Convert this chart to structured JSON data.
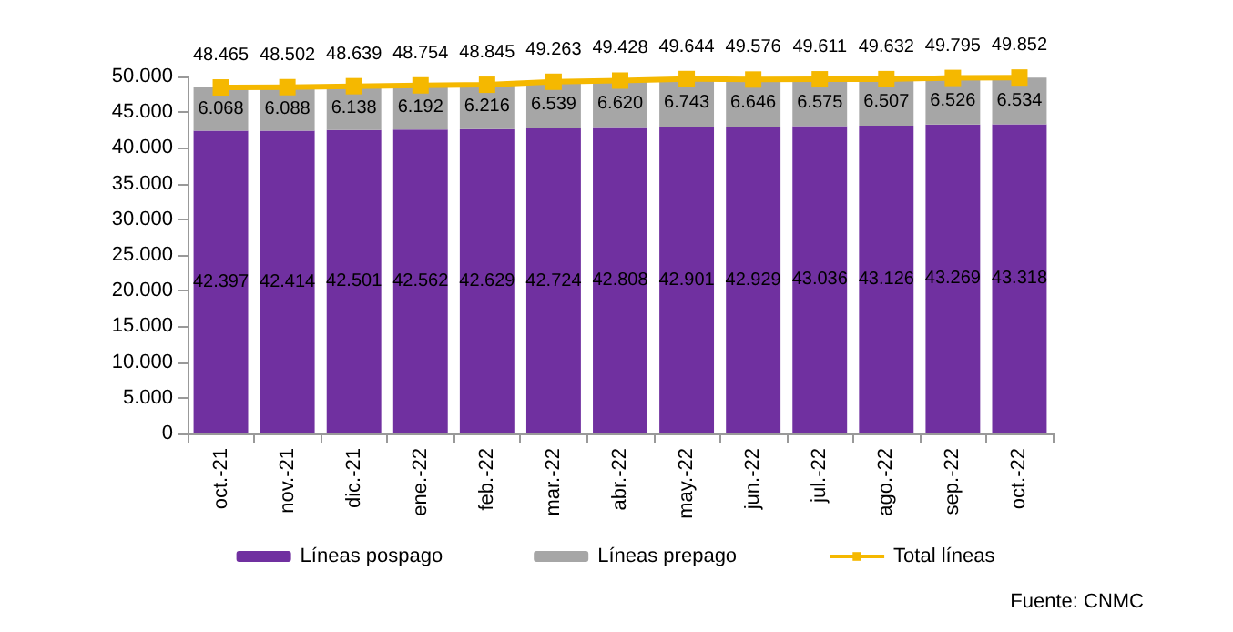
{
  "chart_data": {
    "type": "bar",
    "stacked": true,
    "categories": [
      "oct.-21",
      "nov.-21",
      "dic.-21",
      "ene.-22",
      "feb.-22",
      "mar.-22",
      "abr.-22",
      "may.-22",
      "jun.-22",
      "jul.-22",
      "ago.-22",
      "sep.-22",
      "oct.-22"
    ],
    "series": [
      {
        "name": "Líneas pospago",
        "color": "#7030a0",
        "values": [
          42397,
          42414,
          42501,
          42562,
          42629,
          42724,
          42808,
          42901,
          42929,
          43036,
          43126,
          43269,
          43318
        ],
        "value_labels": [
          "42.397",
          "42.414",
          "42.501",
          "42.562",
          "42.629",
          "42.724",
          "42.808",
          "42.901",
          "42.929",
          "43.036",
          "43.126",
          "43.269",
          "43.318"
        ]
      },
      {
        "name": "Líneas prepago",
        "color": "#a6a6a6",
        "values": [
          6068,
          6088,
          6138,
          6192,
          6216,
          6539,
          6620,
          6743,
          6646,
          6575,
          6507,
          6526,
          6534
        ],
        "value_labels": [
          "6.068",
          "6.088",
          "6.138",
          "6.192",
          "6.216",
          "6.539",
          "6.620",
          "6.743",
          "6.646",
          "6.575",
          "6.507",
          "6.526",
          "6.534"
        ]
      },
      {
        "name": "Total líneas",
        "type": "line",
        "color": "#f5b800",
        "marker": "square",
        "values": [
          48465,
          48502,
          48639,
          48754,
          48845,
          49263,
          49428,
          49644,
          49576,
          49611,
          49632,
          49795,
          49852
        ],
        "value_labels": [
          "48.465",
          "48.502",
          "48.639",
          "48.754",
          "48.845",
          "49.263",
          "49.428",
          "49.644",
          "49.576",
          "49.611",
          "49.632",
          "49.795",
          "49.852"
        ]
      }
    ],
    "ylim": [
      0,
      50000
    ],
    "yticks": [
      {
        "value": 0,
        "label": "0"
      },
      {
        "value": 5000,
        "label": "5.000"
      },
      {
        "value": 10000,
        "label": "10.000"
      },
      {
        "value": 15000,
        "label": "15.000"
      },
      {
        "value": 20000,
        "label": "20.000"
      },
      {
        "value": 25000,
        "label": "25.000"
      },
      {
        "value": 30000,
        "label": "30.000"
      },
      {
        "value": 35000,
        "label": "35.000"
      },
      {
        "value": 40000,
        "label": "40.000"
      },
      {
        "value": 45000,
        "label": "45.000"
      },
      {
        "value": 50000,
        "label": "50.000"
      }
    ],
    "grid": false,
    "legend": "bottom",
    "annotations": [
      "Fuente: CNMC"
    ]
  }
}
